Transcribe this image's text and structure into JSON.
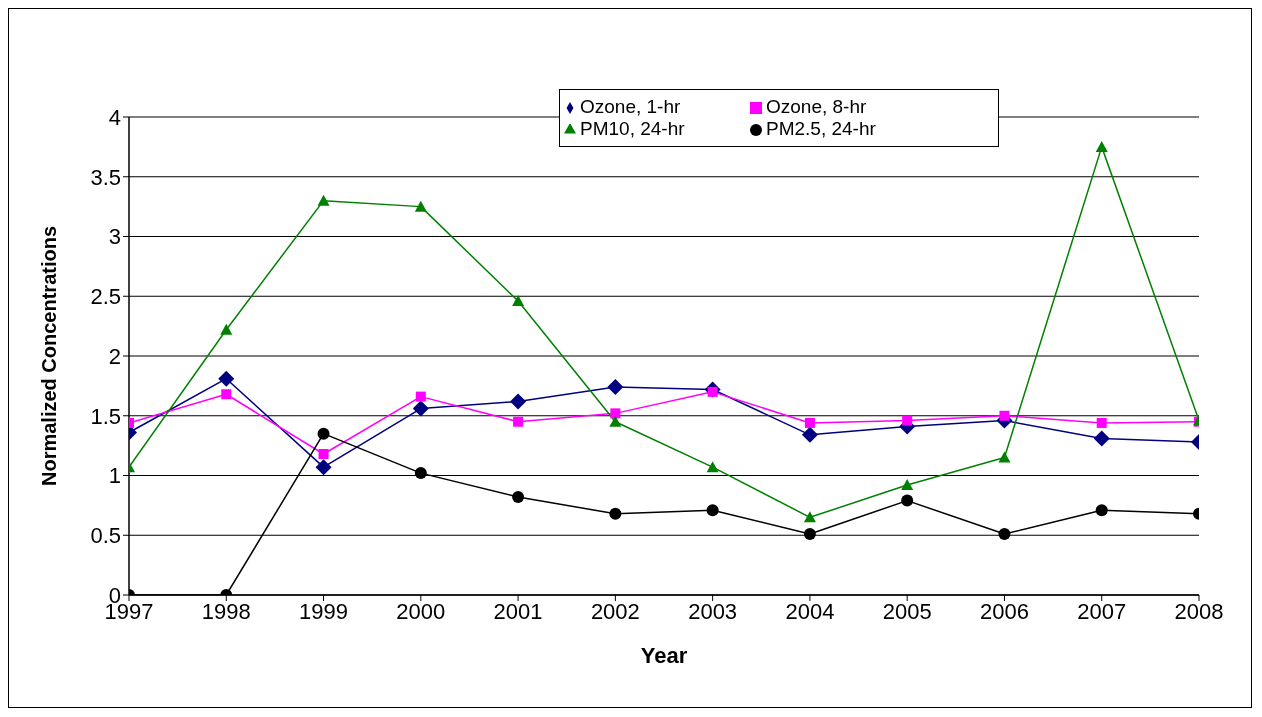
{
  "chart_data": {
    "type": "line",
    "xlabel": "Year",
    "ylabel": "Normalized Concentrations",
    "x": [
      1997,
      1998,
      1999,
      2000,
      2001,
      2002,
      2003,
      2004,
      2005,
      2006,
      2007,
      2008
    ],
    "xlim": [
      1997,
      2008
    ],
    "xticks": [
      1997,
      1998,
      1999,
      2000,
      2001,
      2002,
      2003,
      2004,
      2005,
      2006,
      2007,
      2008
    ],
    "ylim": [
      0,
      4
    ],
    "yticks": [
      0,
      0.5,
      1,
      1.5,
      2,
      2.5,
      3,
      3.5,
      4
    ],
    "grid": "y",
    "legend": "top right",
    "series": [
      {
        "name": "Ozone, 1-hr",
        "color": "#000080",
        "marker": "diamond",
        "values": [
          1.36,
          1.81,
          1.07,
          1.56,
          1.62,
          1.74,
          1.72,
          1.34,
          1.41,
          1.46,
          1.31,
          1.28
        ]
      },
      {
        "name": "Ozone, 8-hr",
        "color": "#ff00ff",
        "marker": "square",
        "values": [
          1.44,
          1.68,
          1.18,
          1.66,
          1.45,
          1.52,
          1.7,
          1.44,
          1.46,
          1.5,
          1.44,
          1.45
        ]
      },
      {
        "name": "PM10, 24-hr",
        "color": "#008000",
        "marker": "triangle",
        "values": [
          1.07,
          2.22,
          3.3,
          3.25,
          2.46,
          1.45,
          1.07,
          0.65,
          0.92,
          1.15,
          3.75,
          1.46
        ]
      },
      {
        "name": "PM2.5, 24-hr",
        "color": "#000000",
        "marker": "circle",
        "values": [
          0,
          0,
          1.35,
          1.02,
          0.82,
          0.68,
          0.71,
          0.51,
          0.79,
          0.51,
          0.71,
          0.68
        ]
      }
    ]
  }
}
